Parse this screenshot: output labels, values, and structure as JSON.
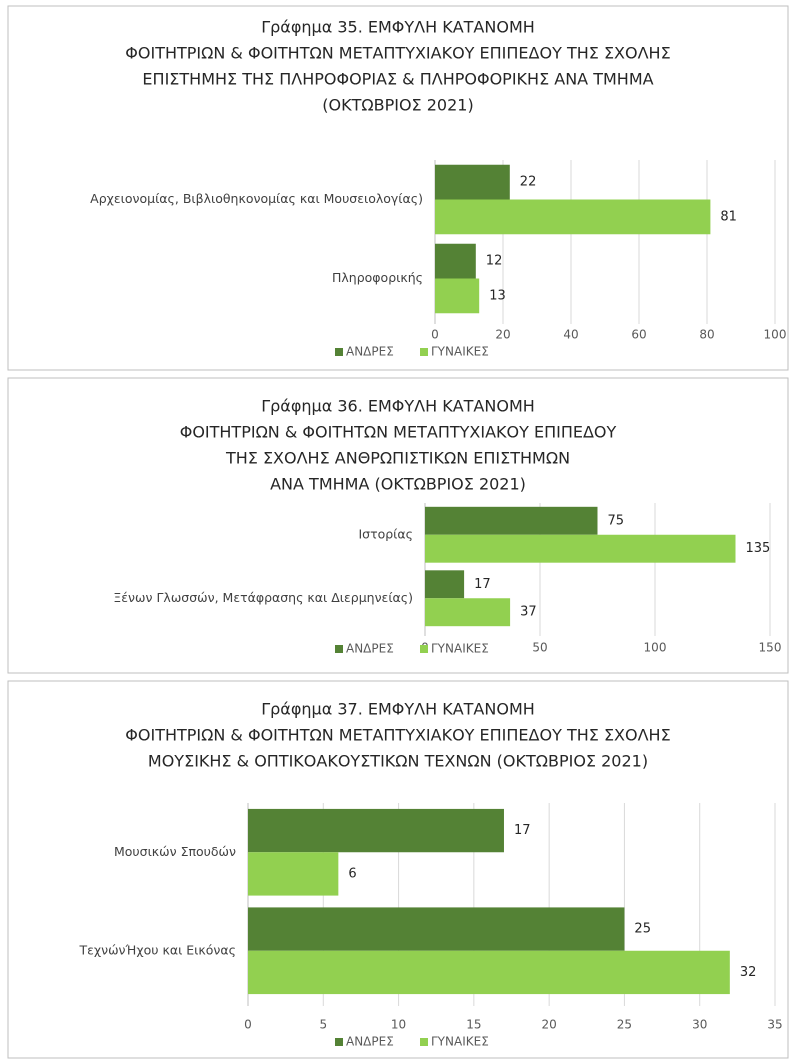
{
  "chart_data": [
    {
      "type": "bar",
      "orientation": "horizontal",
      "title": [
        "Γράφημα 35. ΕΜΦΥΛΗ ΚΑΤΑΝΟΜΗ",
        "ΦΟΙΤΗΤΡΙΩΝ & ΦΟΙΤΗΤΩΝ ΜΕΤΑΠΤΥΧΙΑΚΟΥ ΕΠΙΠΕΔΟΥ ΤΗΣ ΣΧΟΛΗΣ",
        "ΕΠΙΣΤΗΜΗΣ ΤΗΣ ΠΛΗΡΟΦΟΡΙΑΣ & ΠΛΗΡΟΦΟΡΙΚΗΣ  ΑΝΑ ΤΜΗΜΑ",
        "(ΟΚΤΩΒΡΙΟΣ 2021)"
      ],
      "categories": [
        "Αρχειονομίας, Βιβλιοθηκονομίας και Μουσειολογίας)",
        "Πληροφορικής"
      ],
      "series": [
        {
          "name": "ΑΝΔΡΕΣ",
          "color": "#548235",
          "values": [
            22,
            12
          ]
        },
        {
          "name": "ΓΥΝΑΙΚΕΣ",
          "color": "#92d050",
          "values": [
            81,
            13
          ]
        }
      ],
      "xlim": [
        0,
        100
      ],
      "xticks": [
        0,
        20,
        40,
        60,
        80,
        100
      ],
      "grid": true,
      "legend": "bottom"
    },
    {
      "type": "bar",
      "orientation": "horizontal",
      "title": [
        "Γράφημα 36. ΕΜΦΥΛΗ ΚΑΤΑΝΟΜΗ",
        "ΦΟΙΤΗΤΡΙΩΝ & ΦΟΙΤΗΤΩΝ ΜΕΤΑΠΤΥΧΙΑΚΟΥ ΕΠΙΠΕΔΟΥ",
        "ΤΗΣ ΣΧΟΛΗΣ ΑΝΘΡΩΠΙΣΤΙΚΩΝ ΕΠΙΣΤΗΜΩΝ",
        "ΑΝΑ ΤΜΗΜΑ (ΟΚΤΩΒΡΙΟΣ 2021)"
      ],
      "categories": [
        "Ιστορίας",
        "Ξένων Γλωσσών, Μετάφρασης και Διερμηνείας)"
      ],
      "series": [
        {
          "name": "ΑΝΔΡΕΣ",
          "color": "#548235",
          "values": [
            75,
            17
          ]
        },
        {
          "name": "ΓΥΝΑΙΚΕΣ",
          "color": "#92d050",
          "values": [
            135,
            37
          ]
        }
      ],
      "xlim": [
        0,
        150
      ],
      "xticks": [
        0,
        50,
        100,
        150
      ],
      "grid": true,
      "legend": "bottom"
    },
    {
      "type": "bar",
      "orientation": "horizontal",
      "title": [
        "Γράφημα 37. ΕΜΦΥΛΗ ΚΑΤΑΝΟΜΗ",
        "ΦΟΙΤΗΤΡΙΩΝ & ΦΟΙΤΗΤΩΝ ΜΕΤΑΠΤΥΧΙΑΚΟΥ ΕΠΙΠΕΔΟΥ ΤΗΣ ΣΧΟΛΗΣ",
        "ΜΟΥΣΙΚΗΣ & ΟΠΤΙΚΟΑΚΟΥΣΤΙΚΩΝ ΤΕΧΝΩΝ (ΟΚΤΩΒΡΙΟΣ 2021)"
      ],
      "categories": [
        "Μουσικών Σπουδών",
        "ΤεχνώνΉχου και Εικόνας"
      ],
      "series": [
        {
          "name": "ΑΝΔΡΕΣ",
          "color": "#548235",
          "values": [
            17,
            25
          ]
        },
        {
          "name": "ΓΥΝΑΙΚΕΣ",
          "color": "#92d050",
          "values": [
            6,
            32
          ]
        }
      ],
      "xlim": [
        0,
        35
      ],
      "xticks": [
        0,
        5,
        10,
        15,
        20,
        25,
        30,
        35
      ],
      "grid": true,
      "legend": "bottom"
    }
  ]
}
